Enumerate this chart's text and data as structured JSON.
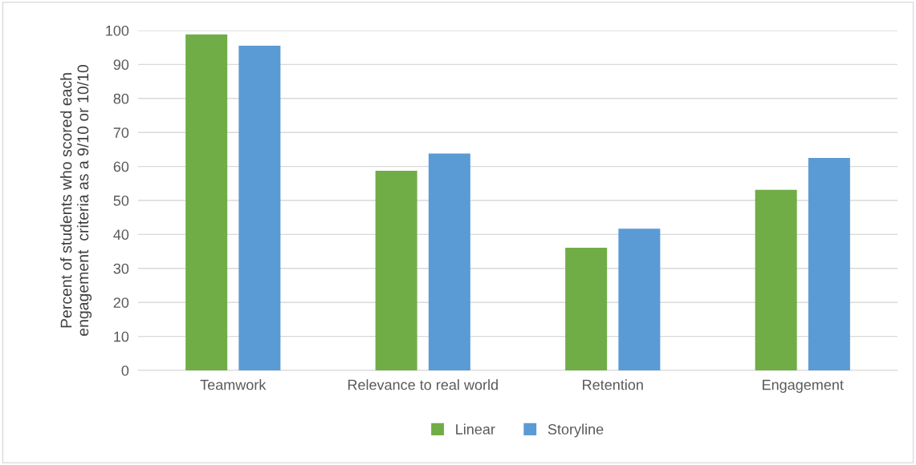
{
  "chart_data": {
    "type": "bar",
    "ylabel": "Percent of students who scored each\nengagement  criteria as a 9/10 or 10/10",
    "categories": [
      "Teamwork",
      "Relevance to real world",
      "Retention",
      "Engagement"
    ],
    "series": [
      {
        "name": "Linear",
        "color": "#70ad47",
        "values": [
          98.8,
          58.7,
          36.1,
          53.1
        ]
      },
      {
        "name": "Storyline",
        "color": "#5b9bd5",
        "values": [
          95.5,
          63.8,
          41.7,
          62.5
        ]
      }
    ],
    "ylim": [
      0,
      100
    ],
    "yticks": [
      0,
      10,
      20,
      30,
      40,
      50,
      60,
      70,
      80,
      90,
      100
    ],
    "grid": "y",
    "legend": "bottom"
  }
}
